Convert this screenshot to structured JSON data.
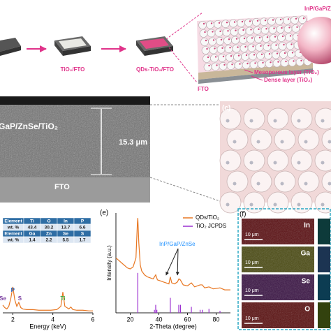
{
  "panel_a": {
    "step2": "TiO₂/FTO",
    "step3": "QDs-TiO₂/FTO",
    "fto": "FTO",
    "mesoporous": "Mesoporous layer (TiO₂)",
    "dense": "Dense layer (TiO₂)",
    "qd": "InP/GaP/Zn"
  },
  "panel_b": {
    "sample": "GaP/ZnSe/TiO₂",
    "thickness": "15.3 μm",
    "substrate": "FTO"
  },
  "panel_c": {
    "label": "(c)"
  },
  "panel_d": {
    "table": {
      "rows": [
        [
          "Element",
          "Ti",
          "O",
          "In",
          "P"
        ],
        [
          "wt. %",
          43.4,
          30.2,
          13.7,
          6.6
        ],
        [
          "Element",
          "Ga",
          "Zn",
          "Se",
          "S"
        ],
        [
          "wt. %",
          1.4,
          2.2,
          5.5,
          1.7
        ]
      ]
    }
  },
  "panel_e": {
    "label": "(e)"
  },
  "panel_f": {
    "label": "(f)",
    "elements": [
      "In",
      "Ga",
      "Se",
      "O"
    ],
    "scale_bar": "10 μm"
  },
  "chart_data": [
    {
      "type": "line",
      "xlabel": "Energy (keV)",
      "xlim": [
        1.5,
        6
      ],
      "xticks": [
        2,
        4,
        6
      ],
      "ylim": [
        0,
        100
      ],
      "series": [
        {
          "color": "#e87722",
          "x": [
            1.5,
            1.6,
            1.7,
            1.8,
            1.9,
            2.0,
            2.1,
            2.2,
            2.3,
            2.4,
            2.5,
            2.7,
            3.0,
            3.3,
            3.6,
            3.9,
            4.2,
            4.4,
            4.5,
            4.6,
            4.8,
            4.9,
            5.0,
            5.2,
            5.5,
            5.8,
            6.0
          ],
          "values": [
            12,
            8,
            6,
            10,
            22,
            40,
            20,
            10,
            16,
            8,
            6,
            5,
            5,
            4,
            4,
            4,
            5,
            10,
            32,
            10,
            6,
            9,
            5,
            4,
            4,
            3,
            3
          ]
        }
      ],
      "annotations": [
        {
          "text": "Se",
          "x": 1.5,
          "color": "#7b3fa0"
        },
        {
          "text": "P",
          "x": 2.0,
          "color": "#1f5fbf"
        },
        {
          "text": "S",
          "x": 2.35,
          "color": "#7b3fa0"
        },
        {
          "text": "Ti",
          "x": 4.5,
          "color": "#3aa83a"
        }
      ]
    },
    {
      "type": "line",
      "xlabel": "2-Theta (degree)",
      "ylabel": "Intensity (a.u.)",
      "xlim": [
        10,
        90
      ],
      "xticks": [
        20,
        40,
        60,
        80
      ],
      "ylim": [
        0,
        100
      ],
      "legend": "upper right",
      "series": [
        {
          "name": "QDs/TiO₂",
          "color": "#e87722",
          "style": "line",
          "x": [
            10,
            14,
            18,
            20,
            22,
            24,
            25,
            25.3,
            26,
            27,
            28,
            30,
            32,
            34,
            36,
            37.8,
            39,
            41,
            43,
            45,
            47,
            48,
            49,
            51,
            53,
            54,
            55,
            57,
            60,
            62.7,
            65,
            68.8,
            70.3,
            72,
            75,
            78,
            82.7,
            86,
            90
          ],
          "values": [
            55,
            50,
            45,
            44,
            46,
            55,
            90,
            95,
            70,
            48,
            42,
            38,
            36,
            35,
            34,
            38,
            33,
            32,
            31,
            30,
            29,
            36,
            30,
            29,
            31,
            34,
            33,
            28,
            27,
            30,
            26,
            28,
            28,
            25,
            26,
            24,
            25,
            23,
            23
          ]
        },
        {
          "name": "TiO₂ JCPDS",
          "color": "#9b30d0",
          "style": "stick",
          "x": [
            25.3,
            36.9,
            37.8,
            38.6,
            48.0,
            53.9,
            55.1,
            62.7,
            68.8,
            70.3,
            75.0,
            82.7
          ],
          "values": [
            40,
            3,
            8,
            3,
            15,
            8,
            8,
            6,
            3,
            3,
            4,
            2
          ]
        }
      ],
      "annotations": [
        {
          "text": "InP/GaP/ZnSe",
          "color": "#1e90ff",
          "targets": [
            45,
            53
          ]
        }
      ]
    }
  ]
}
